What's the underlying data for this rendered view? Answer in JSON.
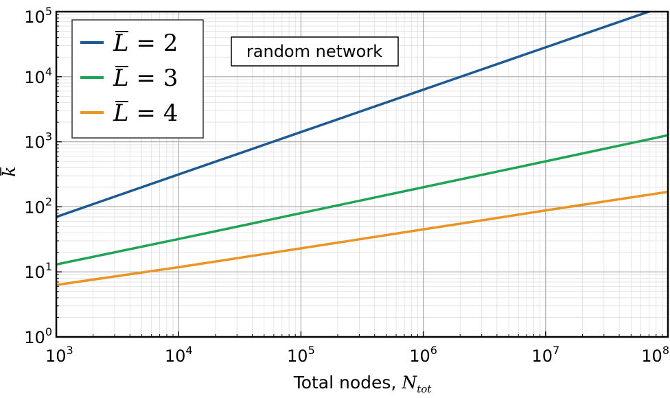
{
  "chart_data": {
    "type": "line",
    "scale": {
      "x": "log",
      "y": "log"
    },
    "xlim": [
      1000,
      100000000
    ],
    "ylim": [
      1,
      100000
    ],
    "grid": {
      "major": true,
      "minor": true
    },
    "x_ticks": [
      {
        "base": "10",
        "exp": "3",
        "value": 1000
      },
      {
        "base": "10",
        "exp": "4",
        "value": 10000
      },
      {
        "base": "10",
        "exp": "5",
        "value": 100000
      },
      {
        "base": "10",
        "exp": "6",
        "value": 1000000
      },
      {
        "base": "10",
        "exp": "7",
        "value": 10000000
      },
      {
        "base": "10",
        "exp": "8",
        "value": 100000000
      }
    ],
    "y_ticks": [
      {
        "base": "10",
        "exp": "0",
        "value": 1
      },
      {
        "base": "10",
        "exp": "1",
        "value": 10
      },
      {
        "base": "10",
        "exp": "2",
        "value": 100
      },
      {
        "base": "10",
        "exp": "3",
        "value": 1000
      },
      {
        "base": "10",
        "exp": "4",
        "value": 10000
      },
      {
        "base": "10",
        "exp": "5",
        "value": 100000
      }
    ],
    "xlabel": {
      "text": "Total nodes, ",
      "symbol": "N",
      "subscript": "tot"
    },
    "ylabel": {
      "symbol": "k"
    },
    "annotation": "random network",
    "legend_position": "top-left",
    "series": [
      {
        "name": "2",
        "legend_symbol": "L",
        "legend_eq": " = ",
        "color": "#1b5a93",
        "x": [
          1000,
          10000,
          100000,
          1000000,
          10000000,
          100000000
        ],
        "y": [
          70,
          315,
          1410,
          6320,
          28300,
          126500
        ]
      },
      {
        "name": "3",
        "legend_symbol": "L",
        "legend_eq": " = ",
        "color": "#1fa454",
        "x": [
          1000,
          10000,
          100000,
          1000000,
          10000000,
          100000000
        ],
        "y": [
          13,
          32,
          80,
          200,
          500,
          1260
        ]
      },
      {
        "name": "4",
        "legend_symbol": "L",
        "legend_eq": " = ",
        "color": "#e99526",
        "x": [
          1000,
          10000,
          100000,
          1000000,
          10000000,
          100000000
        ],
        "y": [
          6.3,
          11.8,
          23,
          45,
          88,
          170
        ]
      }
    ]
  }
}
